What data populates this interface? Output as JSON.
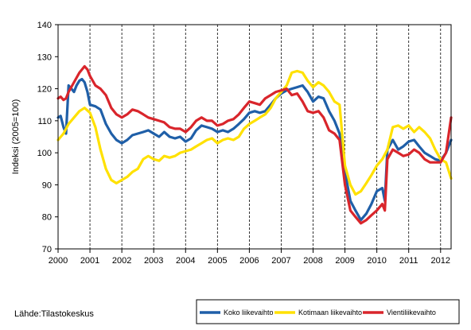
{
  "chart_data": {
    "type": "line",
    "ylabel": "Indeksi (2005=100)",
    "ylim": [
      70,
      140
    ],
    "yticks": [
      70,
      80,
      90,
      100,
      110,
      120,
      130,
      140
    ],
    "xlim": [
      2000,
      2012.33
    ],
    "xticks": [
      "2000",
      "2001",
      "2002",
      "2003",
      "2004",
      "2005",
      "2006",
      "2007",
      "2008",
      "2009",
      "2010",
      "2011",
      "2012"
    ],
    "grid": "vertical-dashed-at-years",
    "legend_position": "bottom-right",
    "series": [
      {
        "name": "Koko liikevaihto",
        "color": "#1f5fa8",
        "points": [
          [
            2000.0,
            111
          ],
          [
            2000.08,
            111.5
          ],
          [
            2000.17,
            108
          ],
          [
            2000.25,
            106
          ],
          [
            2000.33,
            121
          ],
          [
            2000.42,
            120
          ],
          [
            2000.5,
            119
          ],
          [
            2000.58,
            121
          ],
          [
            2000.67,
            122.5
          ],
          [
            2000.75,
            123
          ],
          [
            2000.83,
            122
          ],
          [
            2000.92,
            119
          ],
          [
            2001.0,
            115
          ],
          [
            2001.17,
            114.5
          ],
          [
            2001.33,
            113.5
          ],
          [
            2001.5,
            109
          ],
          [
            2001.67,
            106
          ],
          [
            2001.83,
            104
          ],
          [
            2002.0,
            103
          ],
          [
            2002.17,
            104
          ],
          [
            2002.33,
            105.5
          ],
          [
            2002.5,
            106
          ],
          [
            2002.67,
            106.5
          ],
          [
            2002.83,
            107
          ],
          [
            2003.0,
            106
          ],
          [
            2003.17,
            105
          ],
          [
            2003.33,
            106.5
          ],
          [
            2003.5,
            105
          ],
          [
            2003.67,
            104.5
          ],
          [
            2003.83,
            105
          ],
          [
            2004.0,
            103.5
          ],
          [
            2004.17,
            104.5
          ],
          [
            2004.33,
            107
          ],
          [
            2004.5,
            108.5
          ],
          [
            2004.67,
            108
          ],
          [
            2004.83,
            107.5
          ],
          [
            2005.0,
            106.5
          ],
          [
            2005.17,
            107
          ],
          [
            2005.33,
            106.5
          ],
          [
            2005.5,
            107.5
          ],
          [
            2005.67,
            109
          ],
          [
            2005.83,
            110.5
          ],
          [
            2006.0,
            112.5
          ],
          [
            2006.17,
            113
          ],
          [
            2006.33,
            112.5
          ],
          [
            2006.5,
            113
          ],
          [
            2006.67,
            115
          ],
          [
            2006.83,
            117
          ],
          [
            2007.0,
            118.5
          ],
          [
            2007.17,
            119.5
          ],
          [
            2007.33,
            120
          ],
          [
            2007.5,
            120.5
          ],
          [
            2007.67,
            121
          ],
          [
            2007.83,
            119
          ],
          [
            2008.0,
            116
          ],
          [
            2008.17,
            117.5
          ],
          [
            2008.33,
            117
          ],
          [
            2008.5,
            113
          ],
          [
            2008.67,
            110
          ],
          [
            2008.83,
            106
          ],
          [
            2009.0,
            94
          ],
          [
            2009.17,
            85
          ],
          [
            2009.33,
            82
          ],
          [
            2009.5,
            79
          ],
          [
            2009.67,
            81
          ],
          [
            2009.83,
            84
          ],
          [
            2010.0,
            88
          ],
          [
            2010.17,
            89
          ],
          [
            2010.25,
            85
          ],
          [
            2010.33,
            101
          ],
          [
            2010.5,
            104
          ],
          [
            2010.67,
            101
          ],
          [
            2010.83,
            102
          ],
          [
            2011.0,
            103.5
          ],
          [
            2011.17,
            104
          ],
          [
            2011.33,
            102
          ],
          [
            2011.5,
            100
          ],
          [
            2011.67,
            99
          ],
          [
            2011.83,
            98
          ],
          [
            2012.0,
            97.5
          ],
          [
            2012.17,
            100
          ],
          [
            2012.33,
            104
          ]
        ]
      },
      {
        "name": "Kotimaan liikevaihto",
        "color": "#ffe100",
        "points": [
          [
            2000.0,
            104
          ],
          [
            2000.17,
            106
          ],
          [
            2000.33,
            109
          ],
          [
            2000.5,
            111
          ],
          [
            2000.67,
            113
          ],
          [
            2000.83,
            114
          ],
          [
            2001.0,
            112.5
          ],
          [
            2001.17,
            108
          ],
          [
            2001.33,
            101
          ],
          [
            2001.5,
            95
          ],
          [
            2001.67,
            91.5
          ],
          [
            2001.83,
            90.5
          ],
          [
            2002.0,
            91.5
          ],
          [
            2002.17,
            92.5
          ],
          [
            2002.33,
            94
          ],
          [
            2002.5,
            95
          ],
          [
            2002.67,
            98
          ],
          [
            2002.83,
            99
          ],
          [
            2003.0,
            98
          ],
          [
            2003.17,
            97.5
          ],
          [
            2003.33,
            99
          ],
          [
            2003.5,
            98.5
          ],
          [
            2003.67,
            99
          ],
          [
            2003.83,
            100
          ],
          [
            2004.0,
            100.5
          ],
          [
            2004.17,
            101
          ],
          [
            2004.33,
            102
          ],
          [
            2004.5,
            103
          ],
          [
            2004.67,
            104
          ],
          [
            2004.83,
            104.5
          ],
          [
            2005.0,
            103
          ],
          [
            2005.17,
            104
          ],
          [
            2005.33,
            104.5
          ],
          [
            2005.5,
            104
          ],
          [
            2005.67,
            105
          ],
          [
            2005.83,
            107.5
          ],
          [
            2006.0,
            109
          ],
          [
            2006.17,
            110
          ],
          [
            2006.33,
            111
          ],
          [
            2006.5,
            112
          ],
          [
            2006.67,
            114
          ],
          [
            2006.83,
            117
          ],
          [
            2007.0,
            119
          ],
          [
            2007.17,
            121
          ],
          [
            2007.33,
            125
          ],
          [
            2007.5,
            125.5
          ],
          [
            2007.67,
            125
          ],
          [
            2007.83,
            122.5
          ],
          [
            2008.0,
            120.5
          ],
          [
            2008.17,
            122
          ],
          [
            2008.33,
            121
          ],
          [
            2008.5,
            119
          ],
          [
            2008.67,
            116
          ],
          [
            2008.83,
            115
          ],
          [
            2009.0,
            96
          ],
          [
            2009.17,
            90
          ],
          [
            2009.33,
            87
          ],
          [
            2009.5,
            88
          ],
          [
            2009.67,
            90.5
          ],
          [
            2009.83,
            93
          ],
          [
            2010.0,
            96
          ],
          [
            2010.17,
            98
          ],
          [
            2010.33,
            101
          ],
          [
            2010.5,
            108
          ],
          [
            2010.67,
            108.5
          ],
          [
            2010.83,
            107.5
          ],
          [
            2011.0,
            108.5
          ],
          [
            2011.17,
            106.5
          ],
          [
            2011.33,
            108
          ],
          [
            2011.5,
            106.5
          ],
          [
            2011.67,
            104.5
          ],
          [
            2011.83,
            101
          ],
          [
            2012.0,
            98
          ],
          [
            2012.17,
            97
          ],
          [
            2012.33,
            92
          ]
        ]
      },
      {
        "name": "Vientiliikevaihto",
        "color": "#d9252b",
        "points": [
          [
            2000.0,
            117
          ],
          [
            2000.08,
            117.5
          ],
          [
            2000.17,
            116.5
          ],
          [
            2000.25,
            117
          ],
          [
            2000.33,
            119
          ],
          [
            2000.5,
            122
          ],
          [
            2000.67,
            125
          ],
          [
            2000.83,
            127
          ],
          [
            2000.92,
            126
          ],
          [
            2001.0,
            124
          ],
          [
            2001.17,
            121
          ],
          [
            2001.33,
            120
          ],
          [
            2001.5,
            118
          ],
          [
            2001.67,
            114
          ],
          [
            2001.83,
            112
          ],
          [
            2002.0,
            111
          ],
          [
            2002.17,
            112
          ],
          [
            2002.33,
            113.5
          ],
          [
            2002.5,
            113
          ],
          [
            2002.67,
            112
          ],
          [
            2002.83,
            111
          ],
          [
            2003.0,
            110.5
          ],
          [
            2003.17,
            110
          ],
          [
            2003.33,
            109.5
          ],
          [
            2003.5,
            108
          ],
          [
            2003.67,
            107.5
          ],
          [
            2003.83,
            107.5
          ],
          [
            2004.0,
            106.5
          ],
          [
            2004.17,
            108
          ],
          [
            2004.33,
            110
          ],
          [
            2004.5,
            111
          ],
          [
            2004.67,
            110
          ],
          [
            2004.83,
            110
          ],
          [
            2005.0,
            108.5
          ],
          [
            2005.17,
            109
          ],
          [
            2005.33,
            110
          ],
          [
            2005.5,
            110.5
          ],
          [
            2005.67,
            112
          ],
          [
            2005.83,
            114
          ],
          [
            2006.0,
            116
          ],
          [
            2006.17,
            115.5
          ],
          [
            2006.33,
            115
          ],
          [
            2006.5,
            117
          ],
          [
            2006.67,
            118
          ],
          [
            2006.83,
            119
          ],
          [
            2007.0,
            119.5
          ],
          [
            2007.17,
            120
          ],
          [
            2007.33,
            118
          ],
          [
            2007.5,
            118.5
          ],
          [
            2007.67,
            116
          ],
          [
            2007.83,
            113
          ],
          [
            2008.0,
            112.5
          ],
          [
            2008.17,
            113
          ],
          [
            2008.33,
            111
          ],
          [
            2008.5,
            107
          ],
          [
            2008.67,
            106
          ],
          [
            2008.83,
            104
          ],
          [
            2009.0,
            90
          ],
          [
            2009.17,
            82
          ],
          [
            2009.33,
            80
          ],
          [
            2009.5,
            78
          ],
          [
            2009.67,
            79
          ],
          [
            2009.83,
            80.5
          ],
          [
            2010.0,
            82
          ],
          [
            2010.17,
            84
          ],
          [
            2010.25,
            82
          ],
          [
            2010.33,
            98
          ],
          [
            2010.5,
            101
          ],
          [
            2010.67,
            100
          ],
          [
            2010.83,
            99
          ],
          [
            2011.0,
            99.5
          ],
          [
            2011.17,
            101
          ],
          [
            2011.33,
            100
          ],
          [
            2011.5,
            98
          ],
          [
            2011.67,
            97
          ],
          [
            2011.83,
            97
          ],
          [
            2012.0,
            97
          ],
          [
            2012.17,
            100
          ],
          [
            2012.33,
            111
          ]
        ]
      }
    ]
  },
  "source": "Lähde:Tilastokeskus"
}
